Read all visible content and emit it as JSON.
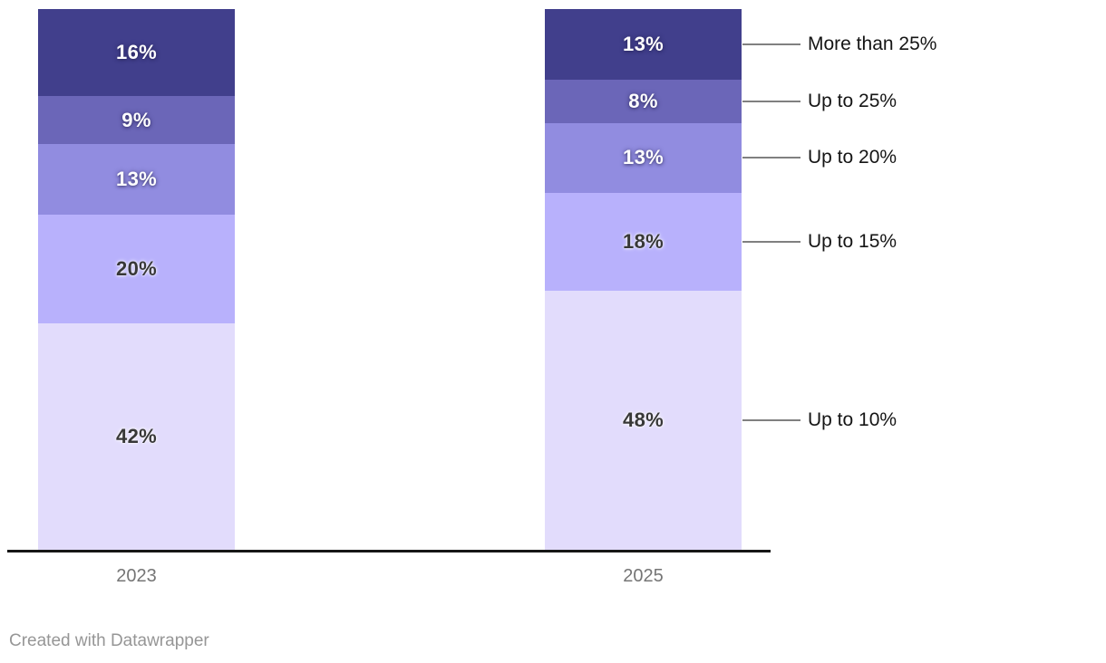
{
  "chart_data": {
    "type": "bar",
    "variant": "stacked-column",
    "title": "",
    "categories": [
      "2023",
      "2025"
    ],
    "series": [
      {
        "name": "More than 25%",
        "color": "#413f8c",
        "values": [
          16,
          13
        ]
      },
      {
        "name": "Up to 25%",
        "color": "#6b66b8",
        "values": [
          9,
          8
        ]
      },
      {
        "name": "Up to 20%",
        "color": "#918ce0",
        "values": [
          13,
          13
        ]
      },
      {
        "name": "Up to 15%",
        "color": "#b8b1fc",
        "values": [
          20,
          18
        ]
      },
      {
        "name": "Up to 10%",
        "color": "#e2dcfc",
        "values": [
          42,
          48
        ]
      }
    ],
    "value_suffix": "%",
    "ylim": [
      0,
      100
    ],
    "grid": false,
    "legend_position": "right-of-last-bar"
  },
  "footer": {
    "credit": "Created with Datawrapper"
  },
  "colors": {
    "background": "#ffffff",
    "axis_line": "#161616",
    "axis_label": "#757575",
    "leader_line": "#808080",
    "legend_text": "#151515",
    "footer_text": "#969696"
  }
}
